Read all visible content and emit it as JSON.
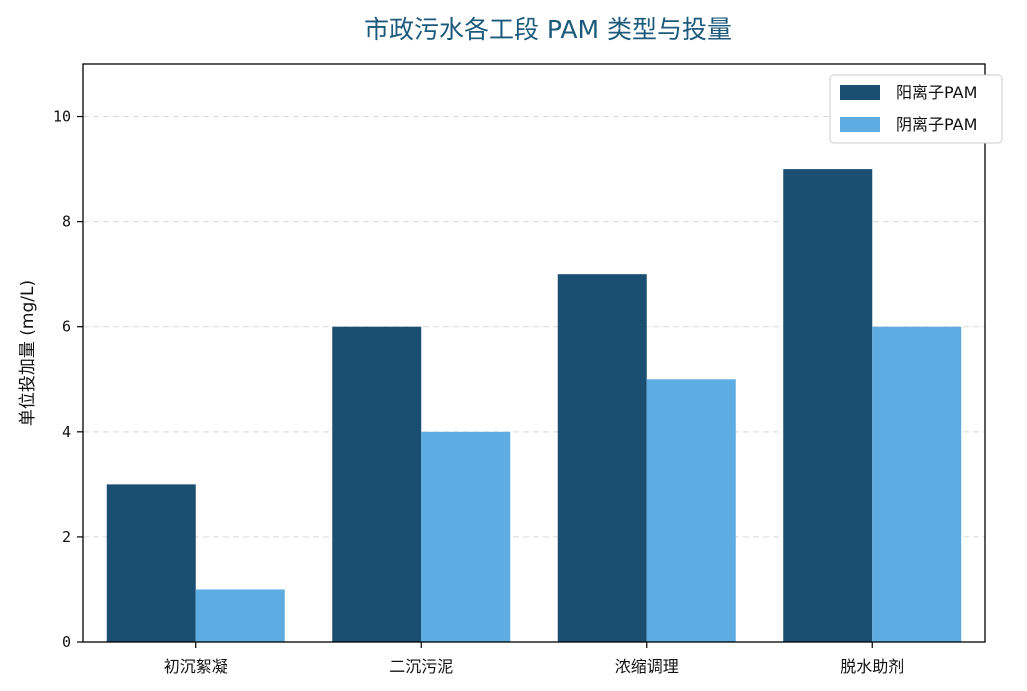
{
  "chart_data": {
    "type": "bar",
    "title": "市政污水各工段 PAM 类型与投量",
    "xlabel": "",
    "ylabel": "单位投加量 (mg/L)",
    "categories": [
      "初沉絮凝",
      "二沉污泥",
      "浓缩调理",
      "脱水助剂"
    ],
    "series": [
      {
        "name": "阳离子PAM",
        "values": [
          3,
          6,
          7,
          9
        ],
        "color": "#1b4f72"
      },
      {
        "name": "阴离子PAM",
        "values": [
          1,
          4,
          5,
          6
        ],
        "color": "#5dade2"
      }
    ],
    "ylim": [
      0,
      11
    ],
    "yticks": [
      0,
      2,
      4,
      6,
      8,
      10
    ],
    "grid": "y-dashed",
    "legend_position": "top-right"
  }
}
